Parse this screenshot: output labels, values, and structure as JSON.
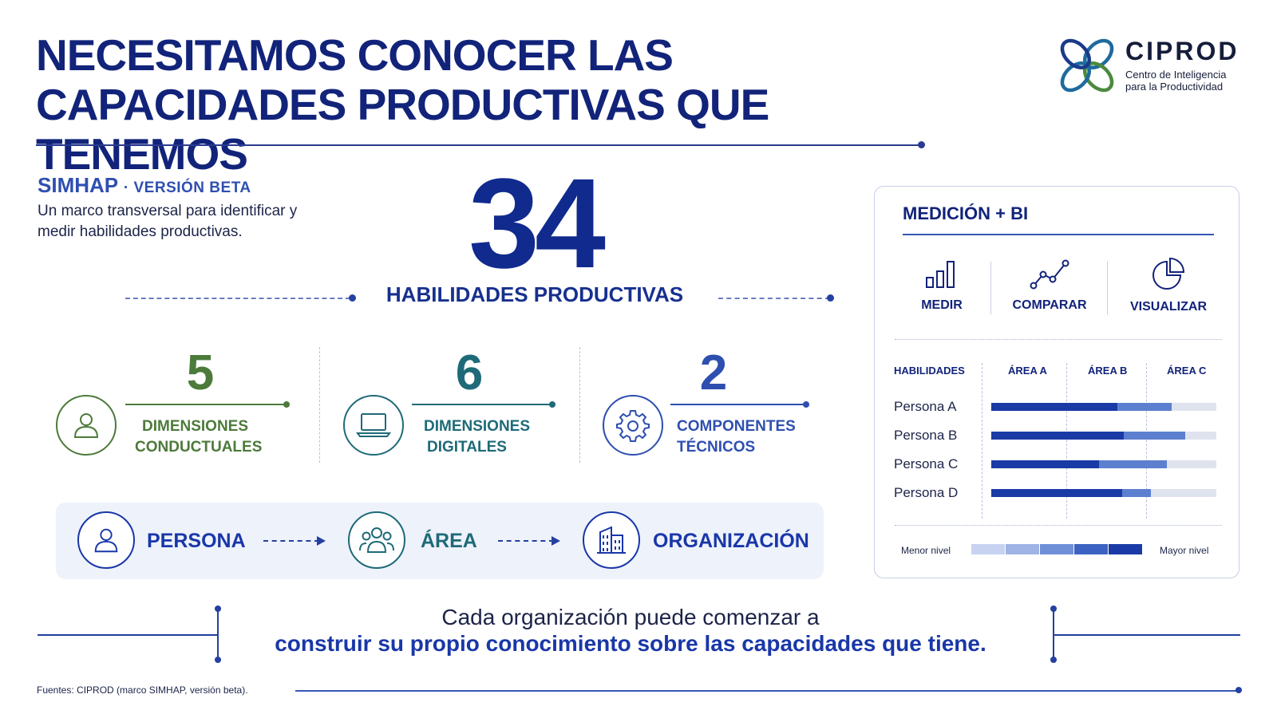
{
  "header": {
    "title_line1": "NECESITAMOS CONOCER LAS",
    "title_line2": "CAPACIDADES PRODUCTIVAS QUE TENEMOS"
  },
  "logo": {
    "name": "CIPROD",
    "subtitle_line1": "Centro de Inteligencia",
    "subtitle_line2": "para la Productividad",
    "icon": "ciprod-logo-icon"
  },
  "intro": {
    "name": "SIMHAP",
    "version": "· VERSIÓN BETA",
    "description": "Un marco transversal para identificar y medir habilidades productivas."
  },
  "headline": {
    "number": "34",
    "label": "HABILIDADES PRODUCTIVAS"
  },
  "dimensions": [
    {
      "count": "5",
      "label_line1": "DIMENSIONES",
      "label_line2": "CONDUCTUALES",
      "icon": "person-icon",
      "color": "#4c7a3a"
    },
    {
      "count": "6",
      "label_line1": "DIMENSIONES",
      "label_line2": "DIGITALES",
      "icon": "laptop-icon",
      "color": "#1e6a78"
    },
    {
      "count": "2",
      "label_line1": "COMPONENTES",
      "label_line2": "TÉCNICOS",
      "icon": "gear-icon",
      "color": "#2e4fb0"
    }
  ],
  "flow": [
    {
      "label": "PERSONA",
      "icon": "person-icon",
      "color": "#1937a8"
    },
    {
      "label": "ÁREA",
      "icon": "group-icon",
      "color": "#1e6a78"
    },
    {
      "label": "ORGANIZACIÓN",
      "icon": "building-icon",
      "color": "#1937a8"
    }
  ],
  "panel": {
    "title": "MEDICIÓN + BI",
    "tools": [
      {
        "label": "MEDIR",
        "icon": "bar-chart-icon"
      },
      {
        "label": "COMPARAR",
        "icon": "line-chart-icon"
      },
      {
        "label": "VISUALIZAR",
        "icon": "pie-chart-icon"
      }
    ],
    "table": {
      "headers": [
        "HABILIDADES",
        "ÁREA A",
        "ÁREA B",
        "ÁREA C"
      ],
      "rows": [
        {
          "name": "Persona A",
          "dark": 0.56,
          "mid": 0.8
        },
        {
          "name": "Persona B",
          "dark": 0.59,
          "mid": 0.86
        },
        {
          "name": "Persona C",
          "dark": 0.48,
          "mid": 0.78
        },
        {
          "name": "Persona D",
          "dark": 0.58,
          "mid": 0.71
        }
      ]
    },
    "legend": {
      "low": "Menor nivel",
      "high": "Mayor nivel",
      "colors": [
        "#c7d3f0",
        "#9fb3e4",
        "#6f8fd6",
        "#3c63c2",
        "#1a3aa6"
      ]
    }
  },
  "closing": {
    "line1": "Cada organización puede comenzar a",
    "line2": "construir su propio conocimiento sobre las capacidades que tiene."
  },
  "source": "Fuentes: CIPROD (marco SIMHAP, versión beta).",
  "colors": {
    "navy": "#12237a",
    "blue": "#1937a8",
    "green": "#4c7a3a",
    "teal": "#1e6a78"
  }
}
